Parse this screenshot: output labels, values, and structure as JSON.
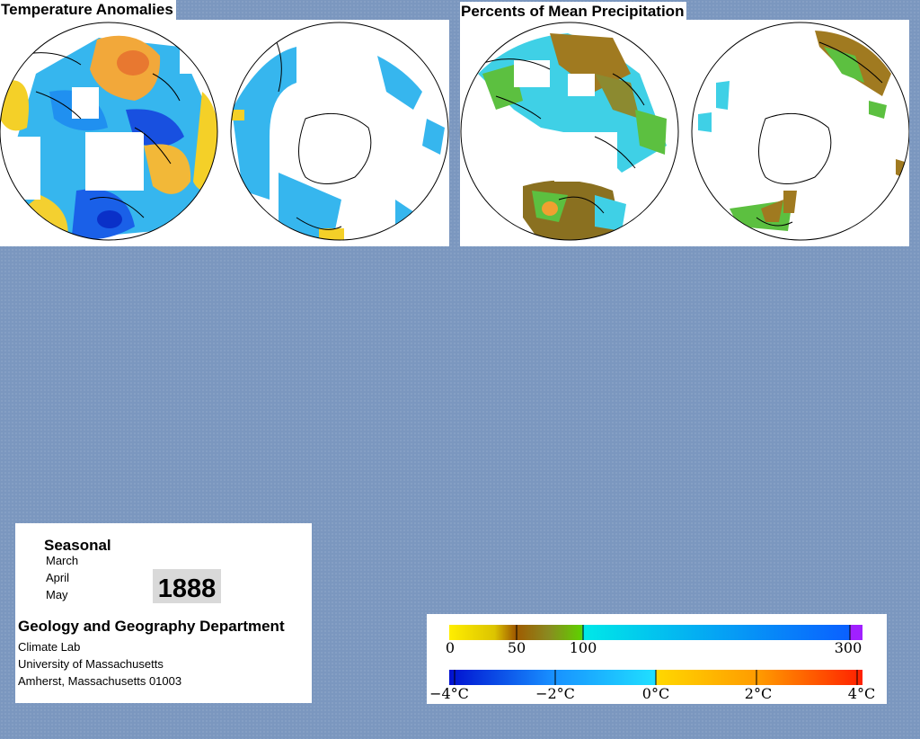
{
  "temperature_panel": {
    "title": "Temperature Anomalies"
  },
  "precipitation_panel": {
    "title": "Percents of Mean Precipitation"
  },
  "info": {
    "season": "Seasonal",
    "months": [
      "March",
      "April",
      "May"
    ],
    "year": "1888",
    "department": "Geology and Geography Department",
    "address_lines": [
      "Climate Lab",
      "University of Massachusetts",
      "Amherst, Massachusetts 01003"
    ]
  },
  "legend": {
    "precipitation": {
      "ticks": [
        "0",
        "50",
        "100",
        "300"
      ],
      "colors": [
        "#ffee00",
        "#c8a000",
        "#a05a00",
        "#5fd000",
        "#00e8e8",
        "#0a60ff",
        "#a020ff"
      ]
    },
    "temperature": {
      "ticks": [
        "−4°C",
        "−2°C",
        "0°C",
        "2°C",
        "4°C"
      ],
      "colors": [
        "#0010d0",
        "#1890ff",
        "#20e0ff",
        "#ffd800",
        "#ff8c00",
        "#ff2000"
      ]
    }
  },
  "colors": {
    "background": "#7b97bf",
    "warm_anomaly": "#f0c000",
    "cool_anomaly": "#30b8f0",
    "precip_brown": "#a07a20",
    "precip_green": "#4cc040"
  }
}
